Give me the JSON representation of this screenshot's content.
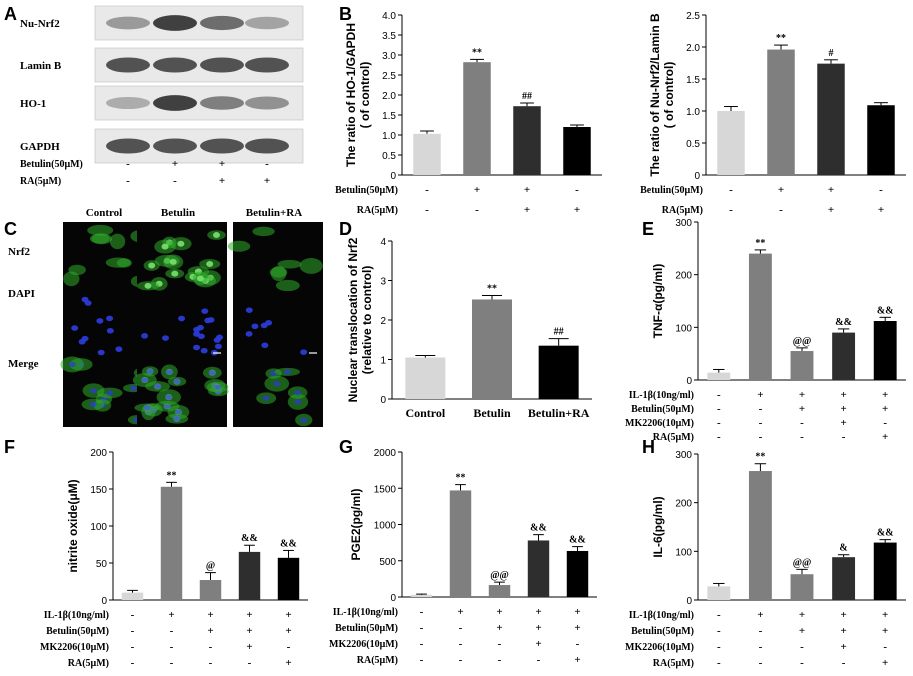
{
  "panel_letters": {
    "A": "A",
    "B": "B",
    "C": "C",
    "D": "D",
    "E": "E",
    "F": "F",
    "G": "G",
    "H": "H"
  },
  "colors": {
    "control": "#d7d7d7",
    "betulin": "#7f7f7f",
    "betulin_ra": "#2e2e2e",
    "ra": "#000000",
    "cell_green": "#2faa2a",
    "cell_blue": "#2b3bd6"
  },
  "blot": {
    "rows": [
      "Nu-Nrf2",
      "Lamin B",
      "HO-1",
      "GAPDH"
    ],
    "treatments": [
      {
        "label": "Betulin(50μM)",
        "signs": [
          "-",
          "+",
          "+",
          "-"
        ]
      },
      {
        "label": "RA(5μM)",
        "signs": [
          "-",
          "-",
          "+",
          "+"
        ]
      }
    ],
    "band_intensity": {
      "Nu-Nrf2": [
        0.45,
        0.95,
        0.7,
        0.4
      ],
      "Lamin B": [
        0.85,
        0.85,
        0.85,
        0.85
      ],
      "HO-1": [
        0.35,
        0.95,
        0.6,
        0.5
      ],
      "GAPDH": [
        0.85,
        0.85,
        0.85,
        0.85
      ]
    }
  },
  "images": {
    "columns": [
      "Control",
      "Betulin",
      "Betulin+RA"
    ],
    "rows": [
      "Nrf2",
      "DAPI",
      "Merge"
    ]
  },
  "chart_data": [
    {
      "id": "B1",
      "type": "bar",
      "ylabel": "The ratio of HO-1/GAPDH\n( of control)",
      "ylim": [
        0,
        4.0
      ],
      "yticks": [
        0,
        0.5,
        1.0,
        1.5,
        2.0,
        2.5,
        3.0,
        3.5,
        4.0
      ],
      "ytick_labels": [
        "0",
        "0.5",
        "1.0",
        "1.5",
        "2.0",
        "2.5",
        "3.0",
        "3.5",
        "4.0"
      ],
      "values": [
        1.03,
        2.82,
        1.72,
        1.2
      ],
      "errors": [
        0.07,
        0.07,
        0.08,
        0.05
      ],
      "annotations": [
        "",
        "**",
        "##",
        ""
      ],
      "treatments": [
        {
          "label": "Betulin(50μM)",
          "signs": [
            "-",
            "+",
            "+",
            "-"
          ]
        },
        {
          "label": "RA(5μM)",
          "signs": [
            "-",
            "-",
            "+",
            "+"
          ]
        }
      ]
    },
    {
      "id": "B2",
      "type": "bar",
      "ylabel": "The ratio of Nu-Nrf2/Lamin B\n( of control)",
      "ylim": [
        0,
        2.5
      ],
      "yticks": [
        0,
        0.5,
        1.0,
        1.5,
        2.0,
        2.5
      ],
      "ytick_labels": [
        "0",
        "0.5",
        "1.0",
        "1.5",
        "2.0",
        "2.5"
      ],
      "values": [
        1.0,
        1.96,
        1.74,
        1.09
      ],
      "errors": [
        0.07,
        0.07,
        0.06,
        0.04
      ],
      "annotations": [
        "",
        "**",
        "#",
        ""
      ],
      "treatments": [
        {
          "label": "Betulin(50μM)",
          "signs": [
            "-",
            "+",
            "+",
            "-"
          ]
        },
        {
          "label": "RA(5μM)",
          "signs": [
            "-",
            "-",
            "+",
            "+"
          ]
        }
      ]
    },
    {
      "id": "D",
      "type": "bar",
      "ylabel": "Nuclear translocation of Nrf2\n(relative to control)",
      "ylim": [
        0,
        4
      ],
      "yticks": [
        0,
        1,
        2,
        3,
        4
      ],
      "ytick_labels": [
        "0",
        "1",
        "2",
        "3",
        "4"
      ],
      "categories": [
        "Control",
        "Betulin",
        "Betulin+RA"
      ],
      "values": [
        1.05,
        2.52,
        1.35
      ],
      "errors": [
        0.05,
        0.1,
        0.18
      ],
      "annotations": [
        "",
        "**",
        "##"
      ]
    },
    {
      "id": "E",
      "type": "bar",
      "ylabel": "TNF-α(pg/ml)",
      "ylim": [
        0,
        300
      ],
      "yticks": [
        0,
        100,
        200,
        300
      ],
      "ytick_labels": [
        "0",
        "100",
        "200",
        "300"
      ],
      "values": [
        14,
        240,
        55,
        90,
        112
      ],
      "errors": [
        6,
        7,
        6,
        7,
        7
      ],
      "annotations": [
        "",
        "**",
        "@@",
        "&&",
        "&&"
      ],
      "treatments": [
        {
          "label": "IL-1β(10ng/ml)",
          "signs": [
            "-",
            "+",
            "+",
            "+",
            "+"
          ]
        },
        {
          "label": "Betulin(50μM)",
          "signs": [
            "-",
            "-",
            "+",
            "+",
            "+"
          ]
        },
        {
          "label": "MK2206(10μM)",
          "signs": [
            "-",
            "-",
            "-",
            "+",
            "-"
          ]
        },
        {
          "label": "RA(5μM)",
          "signs": [
            "-",
            "-",
            "-",
            "-",
            "+"
          ]
        }
      ]
    },
    {
      "id": "F",
      "type": "bar",
      "ylabel": "nitrite oxide(μM)",
      "ylim": [
        0,
        200
      ],
      "yticks": [
        0,
        50,
        100,
        150,
        200
      ],
      "ytick_labels": [
        "0",
        "50",
        "100",
        "150",
        "200"
      ],
      "values": [
        10,
        153,
        27,
        65,
        57
      ],
      "errors": [
        3,
        6,
        10,
        9,
        10
      ],
      "annotations": [
        "",
        "**",
        "@",
        "&&",
        "&&"
      ],
      "treatments": [
        {
          "label": "IL-1β(10ng/ml)",
          "signs": [
            "-",
            "+",
            "+",
            "+",
            "+"
          ]
        },
        {
          "label": "Betulin(50μM)",
          "signs": [
            "-",
            "-",
            "+",
            "+",
            "+"
          ]
        },
        {
          "label": "MK2206(10μM)",
          "signs": [
            "-",
            "-",
            "-",
            "+",
            "-"
          ]
        },
        {
          "label": "RA(5μM)",
          "signs": [
            "-",
            "-",
            "-",
            "-",
            "+"
          ]
        }
      ]
    },
    {
      "id": "G",
      "type": "bar",
      "ylabel": "PGE2(pg/ml)",
      "ylim": [
        0,
        2000
      ],
      "yticks": [
        0,
        500,
        1000,
        1500,
        2000
      ],
      "ytick_labels": [
        "0",
        "500",
        "1000",
        "1500",
        "2000"
      ],
      "values": [
        30,
        1470,
        165,
        780,
        635
      ],
      "errors": [
        10,
        80,
        40,
        80,
        60
      ],
      "annotations": [
        "",
        "**",
        "@@",
        "&&",
        "&&"
      ],
      "treatments": [
        {
          "label": "IL-1β(10ng/ml)",
          "signs": [
            "-",
            "+",
            "+",
            "+",
            "+"
          ]
        },
        {
          "label": "Betulin(50μM)",
          "signs": [
            "-",
            "-",
            "+",
            "+",
            "+"
          ]
        },
        {
          "label": "MK2206(10μM)",
          "signs": [
            "-",
            "-",
            "-",
            "+",
            "-"
          ]
        },
        {
          "label": "RA(5μM)",
          "signs": [
            "-",
            "-",
            "-",
            "-",
            "+"
          ]
        }
      ]
    },
    {
      "id": "H",
      "type": "bar",
      "ylabel": "IL-6(pg/ml)",
      "ylim": [
        0,
        300
      ],
      "yticks": [
        0,
        100,
        200,
        300
      ],
      "ytick_labels": [
        "0",
        "100",
        "200",
        "300"
      ],
      "values": [
        28,
        265,
        53,
        88,
        118
      ],
      "errors": [
        6,
        15,
        10,
        5,
        6
      ],
      "annotations": [
        "",
        "**",
        "@@",
        "&",
        "&&"
      ],
      "treatments": [
        {
          "label": "IL-1β(10ng/ml)",
          "signs": [
            "-",
            "+",
            "+",
            "+",
            "+"
          ]
        },
        {
          "label": "Betulin(50μM)",
          "signs": [
            "-",
            "-",
            "+",
            "+",
            "+"
          ]
        },
        {
          "label": "MK2206(10μM)",
          "signs": [
            "-",
            "-",
            "-",
            "+",
            "-"
          ]
        },
        {
          "label": "RA(5μM)",
          "signs": [
            "-",
            "-",
            "-",
            "-",
            "+"
          ]
        }
      ]
    }
  ]
}
